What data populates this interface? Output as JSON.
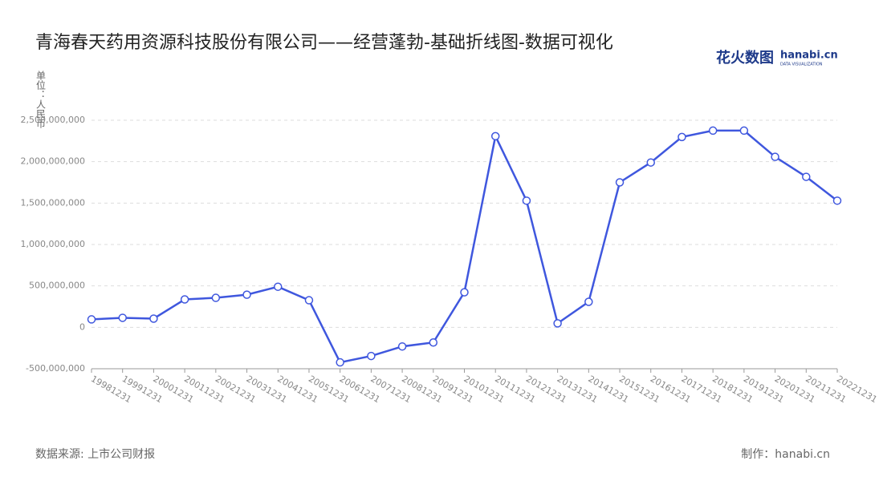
{
  "chart_data": {
    "type": "line",
    "title": "青海春天药用资源科技股份有限公司——经营蓬勃-基础折线图-数据可视化",
    "y_label": "单位：人民币",
    "source": "数据来源: 上市公司财报",
    "credit": "制作：hanabi.cn",
    "logo": "花火数图",
    "logo_site": "hanabi.cn",
    "logo_sub": "DATA VISUALIZATION",
    "categories": [
      "19981231",
      "19991231",
      "20001231",
      "20011231",
      "20021231",
      "20031231",
      "20041231",
      "20051231",
      "20061231",
      "20071231",
      "20081231",
      "20091231",
      "20101231",
      "20111231",
      "20121231",
      "20131231",
      "20141231",
      "20151231",
      "20161231",
      "20171231",
      "20181231",
      "20191231",
      "20201231",
      "20211231",
      "20221231"
    ],
    "values": [
      96000000,
      115000000,
      105000000,
      337000000,
      356000000,
      394000000,
      490000000,
      327000000,
      -423000000,
      -346000000,
      -231000000,
      -183000000,
      423000000,
      2308000000,
      1529000000,
      48000000,
      308000000,
      1750000000,
      1990000000,
      2298000000,
      2375000000,
      2375000000,
      2058000000,
      1817000000,
      1529000000
    ],
    "color": "#3f57de",
    "ylim": [
      -500000000,
      2500000000
    ],
    "yticks": [
      {
        "value": -500000000,
        "label": "-500,000,000"
      },
      0,
      {
        "value": 500000000,
        "label": "500,000,000"
      },
      {
        "value": 1000000000,
        "label": "1,000,000,000"
      },
      {
        "value": 1500000000,
        "label": "1,500,000,000"
      },
      {
        "value": 2000000000,
        "label": "2,000,000,000"
      },
      {
        "value": 2500000000,
        "label": "2,500,000,000"
      }
    ],
    "grid": true
  }
}
